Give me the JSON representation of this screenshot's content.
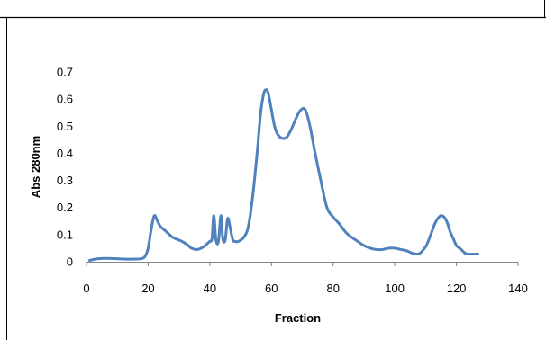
{
  "chart_data": {
    "type": "line",
    "title": "",
    "xlabel": "Fraction",
    "ylabel": "Abs 280nm",
    "xlim": [
      0,
      140
    ],
    "ylim": [
      0,
      0.7
    ],
    "x_ticks": [
      0,
      20,
      40,
      60,
      80,
      100,
      120,
      140
    ],
    "y_ticks": [
      0,
      0.1,
      0.2,
      0.3,
      0.4,
      0.5,
      0.6,
      0.7
    ],
    "x_tick_labels": [
      "0",
      "20",
      "40",
      "60",
      "80",
      "100",
      "120",
      "140"
    ],
    "y_tick_labels": [
      "0",
      "0.1",
      "0.2",
      "0.3",
      "0.4",
      "0.5",
      "0.6",
      "0.7"
    ],
    "grid": false,
    "legend": "none",
    "series": [
      {
        "color": "#4f81bd",
        "x": [
          1,
          3,
          5,
          8,
          12,
          16,
          18,
          19,
          20,
          21,
          22,
          23,
          24,
          26,
          28,
          31,
          33,
          34,
          36,
          38,
          39,
          40,
          40.7,
          41.3,
          42,
          42.8,
          43.6,
          44.2,
          45,
          45.8,
          46.7,
          47.5,
          48.3,
          49.3,
          51,
          52.5,
          54,
          55.5,
          56.5,
          57.5,
          58.3,
          59,
          60,
          61,
          62,
          63.5,
          65,
          66.5,
          68,
          69.5,
          71,
          72.5,
          74,
          76,
          78,
          80,
          82,
          84,
          86,
          88,
          90,
          92,
          94,
          96,
          98,
          100,
          102,
          104,
          106,
          108,
          110,
          111,
          112,
          113,
          114,
          115,
          116,
          117,
          118,
          119,
          120,
          121,
          122,
          123,
          124,
          125,
          126,
          127
        ],
        "y": [
          0.005,
          0.01,
          0.012,
          0.012,
          0.01,
          0.01,
          0.012,
          0.02,
          0.05,
          0.12,
          0.17,
          0.15,
          0.13,
          0.11,
          0.09,
          0.075,
          0.06,
          0.05,
          0.045,
          0.055,
          0.065,
          0.075,
          0.085,
          0.17,
          0.08,
          0.075,
          0.17,
          0.085,
          0.08,
          0.16,
          0.12,
          0.08,
          0.075,
          0.075,
          0.09,
          0.13,
          0.25,
          0.42,
          0.55,
          0.62,
          0.635,
          0.62,
          0.56,
          0.5,
          0.47,
          0.455,
          0.46,
          0.49,
          0.53,
          0.56,
          0.56,
          0.5,
          0.41,
          0.3,
          0.2,
          0.165,
          0.14,
          0.11,
          0.09,
          0.075,
          0.06,
          0.05,
          0.045,
          0.045,
          0.05,
          0.05,
          0.045,
          0.04,
          0.03,
          0.03,
          0.055,
          0.08,
          0.11,
          0.14,
          0.16,
          0.17,
          0.165,
          0.145,
          0.11,
          0.085,
          0.06,
          0.05,
          0.04,
          0.03,
          0.028,
          0.028,
          0.028,
          0.028
        ]
      }
    ]
  }
}
